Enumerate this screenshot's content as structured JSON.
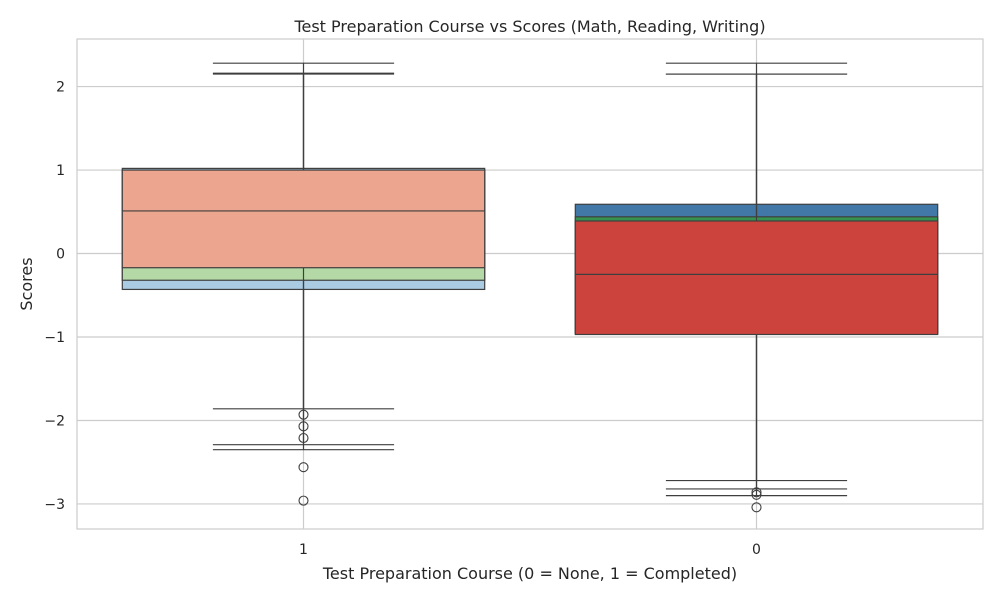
{
  "chart_data": {
    "type": "box",
    "title": "Test Preparation Course vs Scores (Math, Reading, Writing)",
    "xlabel": "Test Preparation Course (0 = None, 1 = Completed)",
    "ylabel": "Scores",
    "categories": [
      "1",
      "0"
    ],
    "y_ticks": [
      2,
      1,
      0,
      -1,
      -2,
      -3
    ],
    "y_tick_labels": [
      "2",
      "1",
      "0",
      "−1",
      "−2",
      "−3"
    ],
    "ylim": [
      -3.3,
      2.57
    ],
    "grid": true,
    "legend": "none",
    "series": [
      {
        "category": "1",
        "color": "#abcbe2",
        "q1": -0.43,
        "median": 0.17,
        "q3": 1.02,
        "whisker_low": -2.35,
        "whisker_high": 2.28,
        "outliers": []
      },
      {
        "category": "1",
        "color": "#b5d9a6",
        "q1": -0.32,
        "median": 0.4,
        "q3": 1.0,
        "whisker_low": -2.29,
        "whisker_high": 2.15,
        "outliers": [
          -2.56,
          -2.96
        ]
      },
      {
        "category": "1",
        "color": "#eca58f",
        "q1": -0.17,
        "median": 0.51,
        "q3": 1.0,
        "whisker_low": -1.86,
        "whisker_high": 2.16,
        "outliers": [
          -1.93,
          -2.07,
          -2.21
        ]
      },
      {
        "category": "0",
        "color": "#4178a8",
        "q1": -0.95,
        "median": -0.1,
        "q3": 0.59,
        "whisker_low": -2.9,
        "whisker_high": 2.28,
        "outliers": [
          -3.04
        ]
      },
      {
        "category": "0",
        "color": "#36934f",
        "q1": -0.96,
        "median": -0.18,
        "q3": 0.44,
        "whisker_low": -2.82,
        "whisker_high": 2.15,
        "outliers": [
          -2.89
        ]
      },
      {
        "category": "0",
        "color": "#cc433d",
        "q1": -0.97,
        "median": -0.25,
        "q3": 0.39,
        "whisker_low": -2.72,
        "whisker_high": 2.15,
        "outliers": [
          -2.86
        ]
      }
    ]
  }
}
